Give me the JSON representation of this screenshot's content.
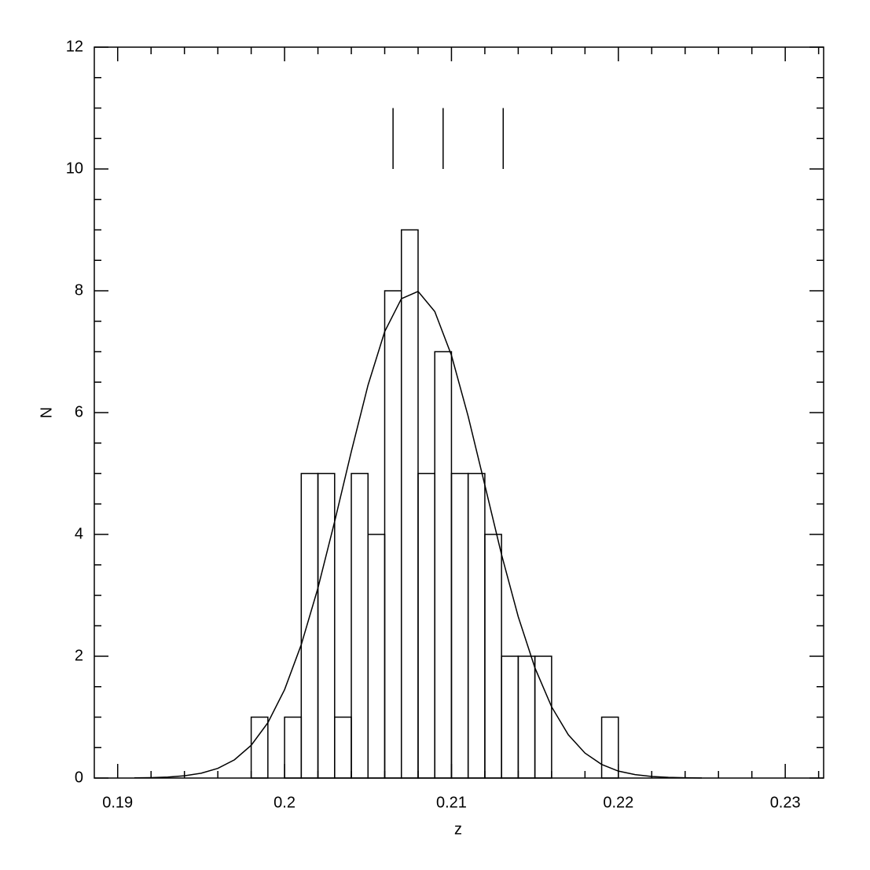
{
  "chart_data": {
    "type": "histogram",
    "xlabel": "z",
    "ylabel": "N",
    "bins": [
      0.198,
      0.199,
      0.2,
      0.201,
      0.202,
      0.203,
      0.204,
      0.205,
      0.206,
      0.207,
      0.208,
      0.209,
      0.21,
      0.211,
      0.212,
      0.213,
      0.214,
      0.215,
      0.216,
      0.217,
      0.218,
      0.219,
      0.22
    ],
    "counts": [
      1,
      0,
      1,
      5,
      5,
      1,
      5,
      4,
      8,
      9,
      5,
      7,
      5,
      5,
      4,
      2,
      2,
      2,
      0,
      0,
      0,
      1
    ],
    "color": "#000000",
    "curve": {
      "x": [
        0.191,
        0.192,
        0.193,
        0.194,
        0.195,
        0.196,
        0.197,
        0.198,
        0.199,
        0.2,
        0.201,
        0.202,
        0.203,
        0.204,
        0.205,
        0.206,
        0.207,
        0.208,
        0.209,
        0.21,
        0.211,
        0.212,
        0.213,
        0.214,
        0.215,
        0.216,
        0.217,
        0.218,
        0.219,
        0.22,
        0.221,
        0.222,
        0.223,
        0.224,
        0.225
      ],
      "values": [
        0.0028,
        0.007,
        0.0166,
        0.037,
        0.079,
        0.159,
        0.3,
        0.538,
        0.909,
        1.451,
        2.19,
        3.12,
        4.21,
        5.36,
        6.45,
        7.33,
        7.87,
        7.99,
        7.66,
        6.94,
        5.94,
        4.81,
        3.67,
        2.65,
        1.81,
        1.17,
        0.711,
        0.41,
        0.223,
        0.114,
        0.056,
        0.026,
        0.011,
        0.0045,
        0.0018
      ],
      "color": "#000000"
    },
    "vlines": {
      "x": [
        0.2065,
        0.2095,
        0.2131
      ],
      "y": [
        10,
        11
      ]
    },
    "xlim": [
      0.1886,
      0.2323
    ],
    "ylim": [
      0,
      12
    ],
    "xticks": [
      0.19,
      0.2,
      0.21,
      0.22,
      0.23
    ],
    "yticks": [
      0,
      2,
      4,
      6,
      8,
      10,
      12
    ],
    "xminorticks": [
      0.192,
      0.194,
      0.196,
      0.198,
      0.202,
      0.204,
      0.206,
      0.208,
      0.212,
      0.214,
      0.216,
      0.218,
      0.222,
      0.224,
      0.226,
      0.228,
      0.232
    ],
    "yminorticks": [
      0.5,
      1,
      1.5,
      2.5,
      3,
      3.5,
      4.5,
      5,
      5.5,
      6.5,
      7,
      7.5,
      8.5,
      9,
      9.5,
      10.5,
      11,
      11.5
    ]
  }
}
